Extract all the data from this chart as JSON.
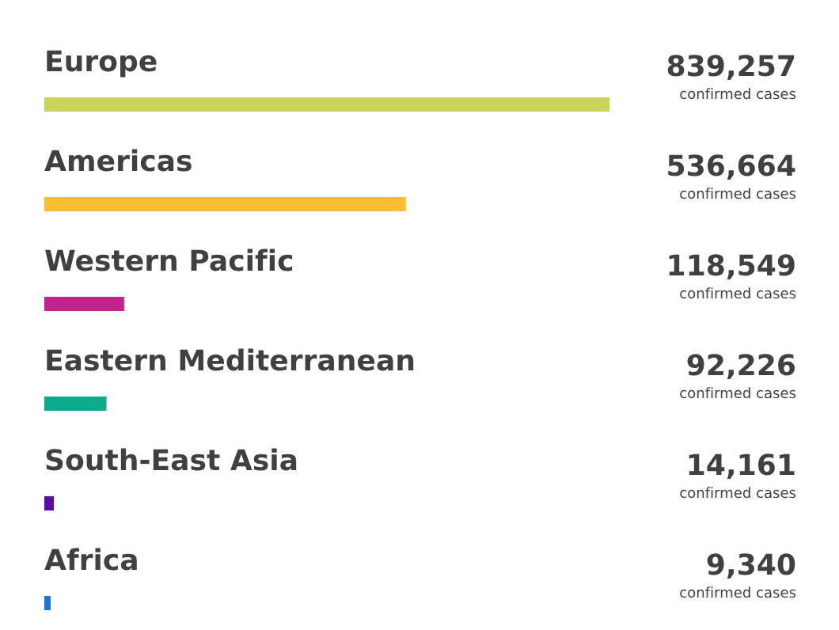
{
  "chart_data": {
    "type": "bar",
    "orientation": "horizontal",
    "categories": [
      "Europe",
      "Americas",
      "Western Pacific",
      "Eastern Mediterranean",
      "South-East Asia",
      "Africa"
    ],
    "values": [
      839257,
      536664,
      118549,
      92226,
      14161,
      9340
    ],
    "colors": [
      "#c8d45a",
      "#fdbd33",
      "#c0238a",
      "#0bab8c",
      "#5b0ea3",
      "#1b74d8"
    ],
    "value_labels": [
      "839,257",
      "536,664",
      "118,549",
      "92,226",
      "14,161",
      "9,340"
    ],
    "annotations": [
      "confirmed cases"
    ]
  }
}
